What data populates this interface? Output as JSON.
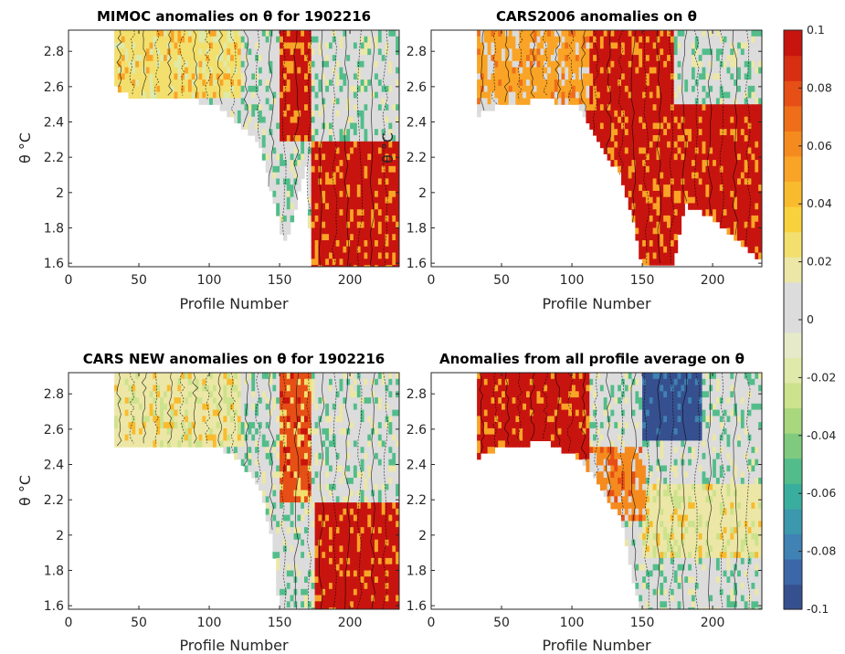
{
  "figure": {
    "colormap_hex": [
      "#36508f",
      "#3b67a8",
      "#3f82b3",
      "#3c98ad",
      "#3aae9e",
      "#52bd8a",
      "#7fca7f",
      "#a9d77d",
      "#cce28c",
      "#dfe9a9",
      "#e6eac8",
      "#dcdcdc",
      "#dcdcdc",
      "#ece7a6",
      "#f3df6d",
      "#f8d23c",
      "#f9bb2e",
      "#f9a426",
      "#f58b1f",
      "#ef6e1a",
      "#e64f16",
      "#d72f12",
      "#c8140f"
    ],
    "nan_color": "#ffffff",
    "contour_color": "#000000"
  },
  "chart_data": [
    {
      "type": "heatmap",
      "title": "MIMOC anomalies on θ  for 1902216",
      "xlabel": "Profile Number",
      "ylabel": "θ °C",
      "xlim": [
        0,
        235
      ],
      "ylim": [
        1.58,
        2.92
      ],
      "xticks": [
        0,
        50,
        100,
        150,
        200
      ],
      "yticks": [
        1.6,
        1.8,
        2,
        2.2,
        2.4,
        2.6,
        2.8
      ],
      "ytick_labels": [
        "1.6",
        "1.8",
        "2",
        "2.2",
        "2.4",
        "2.6",
        "2.8"
      ],
      "grid": false,
      "data_extent": [
        [
          32,
          2.62
        ],
        [
          45,
          2.55
        ],
        [
          80,
          2.55
        ],
        [
          105,
          2.52
        ],
        [
          120,
          2.42
        ],
        [
          135,
          2.3
        ],
        [
          142,
          2.1
        ],
        [
          148,
          1.9
        ],
        [
          151,
          1.8
        ],
        [
          155,
          1.72
        ],
        [
          160,
          1.9
        ],
        [
          170,
          2.2
        ],
        [
          172,
          1.58
        ],
        [
          235,
          1.58
        ]
      ],
      "colored_regions": [
        {
          "profiles": [
            32,
            120
          ],
          "theta": [
            2.55,
            2.92
          ],
          "anomaly": 0.03
        },
        {
          "profiles": [
            150,
            172
          ],
          "theta": [
            2.3,
            2.92
          ],
          "anomaly": 0.1
        },
        {
          "profiles": [
            172,
            235
          ],
          "theta": [
            1.58,
            2.3
          ],
          "anomaly": 0.1
        }
      ]
    },
    {
      "type": "heatmap",
      "title": "CARS2006 anomalies on θ",
      "xlabel": "Profile Number",
      "ylabel": "θ °C",
      "xlim": [
        0,
        235
      ],
      "ylim": [
        1.58,
        2.92
      ],
      "xticks": [
        0,
        50,
        100,
        150,
        200
      ],
      "yticks": [
        1.6,
        1.8,
        2,
        2.2,
        2.4,
        2.6,
        2.8
      ],
      "ytick_labels": [
        "1.6",
        "1.8",
        "2",
        "2.2",
        "2.4",
        "2.6",
        "2.8"
      ],
      "grid": false,
      "data_extent": [
        [
          32,
          2.45
        ],
        [
          45,
          2.5
        ],
        [
          80,
          2.55
        ],
        [
          105,
          2.5
        ],
        [
          120,
          2.3
        ],
        [
          135,
          2.1
        ],
        [
          145,
          1.8
        ],
        [
          150,
          1.6
        ],
        [
          172,
          1.6
        ],
        [
          180,
          1.95
        ],
        [
          195,
          1.9
        ],
        [
          210,
          1.8
        ],
        [
          225,
          1.7
        ],
        [
          235,
          1.62
        ]
      ],
      "colored_regions": [
        {
          "profiles": [
            32,
            110
          ],
          "theta": [
            2.5,
            2.92
          ],
          "anomaly": 0.05
        },
        {
          "profiles": [
            110,
            172
          ],
          "theta": [
            1.6,
            2.92
          ],
          "anomaly": 0.1
        },
        {
          "profiles": [
            172,
            235
          ],
          "theta": [
            1.62,
            2.5
          ],
          "anomaly": 0.1
        }
      ]
    },
    {
      "type": "heatmap",
      "title": "CARS NEW anomalies on θ for 1902216",
      "xlabel": "Profile Number",
      "ylabel": "θ °C",
      "xlim": [
        0,
        235
      ],
      "ylim": [
        1.58,
        2.92
      ],
      "xticks": [
        0,
        50,
        100,
        150,
        200
      ],
      "yticks": [
        1.6,
        1.8,
        2,
        2.2,
        2.4,
        2.6,
        2.8
      ],
      "ytick_labels": [
        "1.6",
        "1.8",
        "2",
        "2.2",
        "2.4",
        "2.6",
        "2.8"
      ],
      "grid": false,
      "data_extent": [
        [
          32,
          2.5
        ],
        [
          45,
          2.52
        ],
        [
          80,
          2.52
        ],
        [
          105,
          2.52
        ],
        [
          120,
          2.45
        ],
        [
          135,
          2.3
        ],
        [
          145,
          2.0
        ],
        [
          150,
          1.58
        ],
        [
          172,
          1.58
        ],
        [
          235,
          1.58
        ]
      ],
      "colored_regions": [
        {
          "profiles": [
            32,
            120
          ],
          "theta": [
            2.52,
            2.92
          ],
          "anomaly": 0.02
        },
        {
          "profiles": [
            150,
            172
          ],
          "theta": [
            2.2,
            2.92
          ],
          "anomaly": 0.08
        },
        {
          "profiles": [
            175,
            235
          ],
          "theta": [
            1.58,
            2.2
          ],
          "anomaly": 0.1
        }
      ]
    },
    {
      "type": "heatmap",
      "title": "Anomalies from all profile average on θ",
      "xlabel": "Profile Number",
      "ylabel": "",
      "xlim": [
        0,
        235
      ],
      "ylim": [
        1.58,
        2.92
      ],
      "xticks": [
        0,
        50,
        100,
        150,
        200
      ],
      "yticks": [
        1.6,
        1.8,
        2,
        2.2,
        2.4,
        2.6,
        2.8
      ],
      "ytick_labels": [
        "1.6",
        "1.8",
        "2",
        "2.2",
        "2.4",
        "2.6",
        "2.8"
      ],
      "grid": false,
      "data_extent": [
        [
          32,
          2.45
        ],
        [
          45,
          2.5
        ],
        [
          80,
          2.55
        ],
        [
          105,
          2.45
        ],
        [
          120,
          2.3
        ],
        [
          135,
          2.1
        ],
        [
          145,
          1.7
        ],
        [
          150,
          1.58
        ],
        [
          235,
          1.58
        ]
      ],
      "colored_regions": [
        {
          "profiles": [
            32,
            110
          ],
          "theta": [
            2.45,
            2.92
          ],
          "anomaly": 0.1
        },
        {
          "profiles": [
            110,
            150
          ],
          "theta": [
            2.1,
            2.5
          ],
          "anomaly": 0.06
        },
        {
          "profiles": [
            150,
            190
          ],
          "theta": [
            2.55,
            2.92
          ],
          "anomaly": -0.1
        },
        {
          "profiles": [
            150,
            235
          ],
          "theta": [
            1.9,
            2.3
          ],
          "anomaly": 0.02
        },
        {
          "profiles": [
            150,
            235
          ],
          "theta": [
            1.58,
            1.9
          ],
          "anomaly": 0.0
        }
      ]
    }
  ],
  "colorbar": {
    "min": -0.1,
    "max": 0.1,
    "ticks": [
      0.1,
      0.08,
      0.06,
      0.04,
      0.02,
      0,
      -0.02,
      -0.04,
      -0.06,
      -0.08,
      -0.1
    ],
    "tick_labels": [
      "0.1",
      "0.08",
      "0.06",
      "0.04",
      "0.02",
      "0",
      "-0.02",
      "-0.04",
      "-0.06",
      "-0.08",
      "-0.1"
    ]
  }
}
